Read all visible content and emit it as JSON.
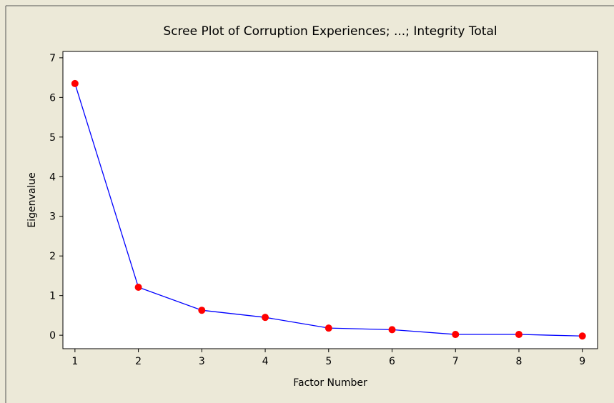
{
  "chart_data": {
    "type": "line",
    "title": "Scree Plot of Corruption Experiences; ...; Integrity Total",
    "xlabel": "Factor Number",
    "ylabel": "Eigenvalue",
    "x": [
      1,
      2,
      3,
      4,
      5,
      6,
      7,
      8,
      9
    ],
    "series": [
      {
        "name": "Eigenvalue",
        "color": "#0000ff",
        "marker_color": "#ff0000",
        "values": [
          6.35,
          1.21,
          0.63,
          0.45,
          0.18,
          0.14,
          0.02,
          0.02,
          -0.02
        ]
      }
    ],
    "xlim": [
      0.81,
      9.24
    ],
    "xticks": [
      1,
      2,
      3,
      4,
      5,
      6,
      7,
      8,
      9
    ],
    "ylim": [
      -0.34,
      7.16
    ],
    "yticks": [
      0,
      1,
      2,
      3,
      4,
      5,
      6,
      7
    ]
  }
}
